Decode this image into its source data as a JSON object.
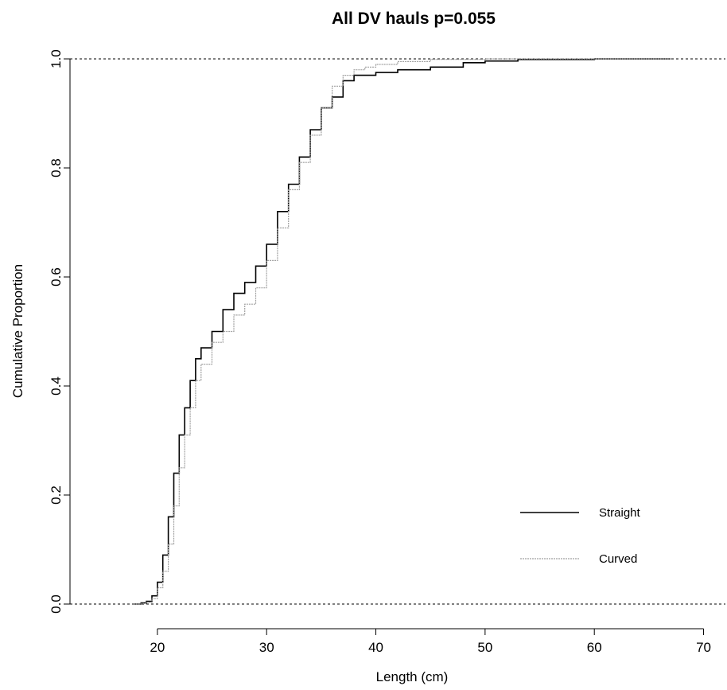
{
  "chart_data": {
    "type": "line",
    "title": "All DV hauls   p=0.055",
    "xlabel": "Length (cm)",
    "ylabel": "Cumulative Proportion",
    "xlim": [
      12,
      72
    ],
    "ylim": [
      0.0,
      1.0
    ],
    "x_ticks": [
      20,
      30,
      40,
      50,
      60,
      70
    ],
    "y_ticks": [
      0.0,
      0.2,
      0.4,
      0.6,
      0.8,
      1.0
    ],
    "x_tick_labels": [
      "20",
      "30",
      "40",
      "50",
      "60",
      "70"
    ],
    "y_tick_labels": [
      "0.0",
      "0.2",
      "0.4",
      "0.6",
      "0.8",
      "1.0"
    ],
    "reference_lines": [
      0.0,
      1.0
    ],
    "grid": false,
    "legend_position": "bottom-right",
    "series": [
      {
        "name": "Straight",
        "color": "#000000",
        "line_style": "solid",
        "x": [
          17.8,
          18.5,
          19.0,
          19.5,
          20.0,
          20.5,
          21.0,
          21.5,
          22.0,
          22.5,
          23.0,
          23.5,
          24.0,
          25.0,
          26.0,
          27.0,
          28.0,
          29.0,
          30.0,
          31.0,
          32.0,
          33.0,
          34.0,
          35.0,
          36.0,
          37.0,
          38.0,
          40.0,
          42.0,
          45.0,
          48.0,
          50.0,
          53.0,
          60.0,
          67.0
        ],
        "y": [
          0.0,
          0.002,
          0.005,
          0.015,
          0.04,
          0.09,
          0.16,
          0.24,
          0.31,
          0.36,
          0.41,
          0.45,
          0.47,
          0.5,
          0.54,
          0.57,
          0.59,
          0.62,
          0.66,
          0.72,
          0.77,
          0.82,
          0.87,
          0.91,
          0.93,
          0.96,
          0.97,
          0.975,
          0.98,
          0.985,
          0.993,
          0.996,
          0.999,
          1.0,
          1.0
        ]
      },
      {
        "name": "Curved",
        "color": "#a0a0a0",
        "line_style": "dotted",
        "x": [
          17.8,
          18.5,
          19.0,
          19.5,
          20.0,
          20.5,
          21.0,
          21.5,
          22.0,
          22.5,
          23.0,
          23.5,
          24.0,
          25.0,
          26.0,
          27.0,
          28.0,
          29.0,
          30.0,
          31.0,
          32.0,
          33.0,
          34.0,
          35.0,
          36.0,
          37.0,
          38.0,
          39.0,
          40.0,
          42.0,
          45.0,
          50.0,
          53.0,
          60.0,
          67.0
        ],
        "y": [
          0.0,
          0.001,
          0.003,
          0.01,
          0.03,
          0.06,
          0.11,
          0.18,
          0.25,
          0.31,
          0.36,
          0.41,
          0.44,
          0.48,
          0.5,
          0.53,
          0.55,
          0.58,
          0.63,
          0.69,
          0.76,
          0.81,
          0.86,
          0.91,
          0.95,
          0.97,
          0.98,
          0.985,
          0.99,
          0.995,
          0.999,
          1.0,
          1.0,
          1.0,
          1.0
        ]
      }
    ]
  }
}
